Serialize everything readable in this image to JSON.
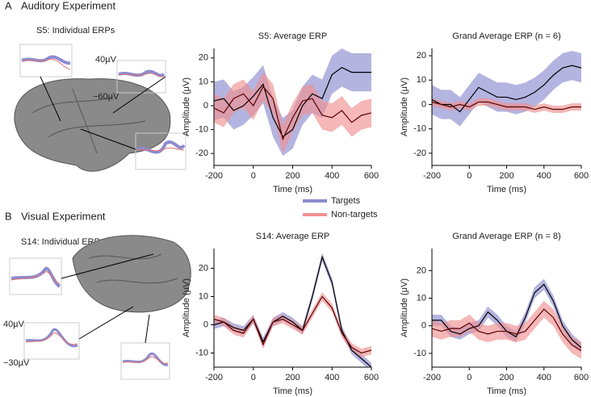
{
  "panels": [
    {
      "label": "A",
      "title": "Auditory Experiment",
      "subtitle": "S5: Individual ERPs",
      "scale_labels": [
        "40µV",
        "−60µV"
      ]
    },
    {
      "label": "B",
      "title": "Visual Experiment",
      "subtitle": "S14: Individual ERPs",
      "scale_labels": [
        "40µV",
        "−30µV"
      ]
    }
  ],
  "chart_data": [
    {
      "type": "line",
      "title": "S5: Average ERP",
      "xlabel": "Time (ms)",
      "ylabel": "Amplitude (μV)",
      "xlim": [
        -200,
        600
      ],
      "xticks": [
        -200,
        0,
        200,
        400,
        600
      ],
      "ylim": [
        -25,
        24
      ],
      "yticks": [
        -20,
        -10,
        0,
        10,
        20
      ],
      "x": [
        -200,
        -150,
        -100,
        -50,
        0,
        50,
        100,
        150,
        200,
        250,
        300,
        350,
        400,
        450,
        500,
        550,
        600
      ],
      "series": [
        {
          "name": "Targets",
          "color": "#8c8cd0",
          "line_color": "#000000",
          "values": [
            2,
            3,
            -2,
            0,
            4,
            9,
            -5,
            -13,
            -10,
            0,
            5,
            3,
            13,
            16,
            14,
            14,
            14
          ],
          "upper": [
            10,
            11,
            6,
            8,
            12,
            17,
            3,
            -5,
            -2,
            8,
            13,
            11,
            21,
            24,
            22,
            22,
            22
          ],
          "lower": [
            -6,
            -5,
            -10,
            -8,
            -4,
            1,
            -13,
            -21,
            -18,
            -8,
            -3,
            -5,
            5,
            8,
            6,
            6,
            6
          ]
        },
        {
          "name": "Non-targets",
          "color": "#f09090",
          "line_color": "#5a0000",
          "values": [
            -1,
            -3,
            3,
            5,
            0,
            8,
            3,
            -14,
            -5,
            2,
            3,
            -4,
            -5,
            -2,
            -7,
            -4,
            -3
          ],
          "upper": [
            5,
            3,
            9,
            11,
            6,
            14,
            9,
            -8,
            1,
            8,
            9,
            2,
            1,
            4,
            -1,
            2,
            3
          ],
          "lower": [
            -7,
            -9,
            -3,
            -1,
            -6,
            2,
            -3,
            -20,
            -11,
            -4,
            -3,
            -10,
            -11,
            -8,
            -13,
            -10,
            -9
          ]
        }
      ]
    },
    {
      "type": "line",
      "title": "Grand Average ERP (n = 6)",
      "xlabel": "Time (ms)",
      "ylabel": "Amplitude (μV)",
      "xlim": [
        -200,
        600
      ],
      "xticks": [
        -200,
        0,
        200,
        400,
        600
      ],
      "ylim": [
        -25,
        23
      ],
      "yticks": [
        -20,
        -10,
        0,
        10,
        20
      ],
      "x": [
        -200,
        -150,
        -100,
        -50,
        0,
        50,
        100,
        150,
        200,
        250,
        300,
        350,
        400,
        450,
        500,
        550,
        600
      ],
      "series": [
        {
          "color": "#8c8cd0",
          "line_color": "#000000",
          "values": [
            2,
            0,
            0,
            -3,
            2,
            7,
            5,
            3,
            3,
            2,
            3,
            5,
            8,
            12,
            15,
            16,
            15
          ],
          "upper": [
            8,
            6,
            6,
            3,
            8,
            13,
            11,
            9,
            9,
            8,
            9,
            11,
            14,
            18,
            21,
            22,
            21
          ],
          "lower": [
            -4,
            -6,
            -6,
            -9,
            -4,
            1,
            -1,
            -3,
            -3,
            -4,
            -3,
            -1,
            2,
            6,
            9,
            10,
            9
          ]
        },
        {
          "color": "#f09090",
          "line_color": "#5a0000",
          "values": [
            1,
            0,
            -1,
            0,
            -1,
            1,
            1,
            0,
            -1,
            -1,
            -1,
            -2,
            -1,
            -2,
            -2,
            -1,
            -1
          ],
          "upper": [
            2.5,
            1.5,
            0.5,
            1.5,
            0.5,
            2.5,
            2.5,
            1.5,
            0.5,
            0.5,
            0.5,
            -0.5,
            0.5,
            -0.5,
            -0.5,
            0.5,
            0.5
          ],
          "lower": [
            -0.5,
            -1.5,
            -2.5,
            -1.5,
            -2.5,
            -0.5,
            -0.5,
            -1.5,
            -2.5,
            -2.5,
            -2.5,
            -3.5,
            -2.5,
            -3.5,
            -3.5,
            -2.5,
            -2.5
          ]
        }
      ]
    },
    {
      "type": "line",
      "title": "S14: Average ERP",
      "xlabel": "Time (ms)",
      "ylabel": "Amplitude (μV)",
      "xlim": [
        -200,
        600
      ],
      "xticks": [
        -200,
        0,
        200,
        400,
        600
      ],
      "ylim": [
        -15,
        27
      ],
      "yticks": [
        -10,
        0,
        10,
        20
      ],
      "x": [
        -200,
        -150,
        -100,
        -50,
        0,
        50,
        100,
        150,
        200,
        250,
        300,
        350,
        400,
        450,
        500,
        550,
        600
      ],
      "series": [
        {
          "color": "#8c8cd0",
          "line_color": "#000000",
          "values": [
            0,
            1,
            -1,
            -2,
            2,
            -6,
            1,
            3,
            1,
            -2,
            10,
            24,
            15,
            -2,
            -9,
            -12,
            -15
          ],
          "upper": [
            1.5,
            2.5,
            0.5,
            -0.5,
            3.5,
            -4.5,
            2.5,
            4.5,
            2.5,
            -0.5,
            11.5,
            25.5,
            16.5,
            -0.5,
            -7.5,
            -10.5,
            -13.5
          ],
          "lower": [
            -1.5,
            -0.5,
            -2.5,
            -3.5,
            0.5,
            -7.5,
            -0.5,
            1.5,
            -0.5,
            -3.5,
            8.5,
            22.5,
            13.5,
            -3.5,
            -10.5,
            -13.5,
            -16.5
          ]
        },
        {
          "color": "#f09090",
          "line_color": "#5a0000",
          "values": [
            2,
            1,
            -2,
            -3,
            2,
            -7,
            1,
            2,
            0,
            -2,
            4,
            10,
            6,
            -3,
            -8,
            -10,
            -9
          ],
          "upper": [
            3.5,
            2.5,
            -0.5,
            -1.5,
            3.5,
            -5.5,
            2.5,
            3.5,
            1.5,
            -0.5,
            5.5,
            11.5,
            7.5,
            -1.5,
            -6.5,
            -8.5,
            -7.5
          ],
          "lower": [
            0.5,
            -0.5,
            -3.5,
            -4.5,
            0.5,
            -8.5,
            -0.5,
            0.5,
            -1.5,
            -3.5,
            2.5,
            8.5,
            4.5,
            -4.5,
            -9.5,
            -11.5,
            -10.5
          ]
        }
      ]
    },
    {
      "type": "line",
      "title": "Grand Average ERP (n = 8)",
      "xlabel": "Time (ms)",
      "ylabel": "Amplitude (μV)",
      "xlim": [
        -200,
        600
      ],
      "xticks": [
        -200,
        0,
        200,
        400,
        600
      ],
      "ylim": [
        -15,
        28
      ],
      "yticks": [
        -10,
        0,
        10,
        20
      ],
      "x": [
        -200,
        -150,
        -100,
        -50,
        0,
        50,
        100,
        150,
        200,
        250,
        300,
        350,
        400,
        450,
        500,
        550,
        600
      ],
      "series": [
        {
          "color": "#8c8cd0",
          "line_color": "#000000",
          "values": [
            2,
            2,
            -2,
            -3,
            -1,
            0,
            5,
            2,
            -2,
            -4,
            3,
            12,
            15,
            9,
            0,
            -5,
            -8
          ],
          "upper": [
            4,
            4,
            0,
            -1,
            1,
            2,
            7,
            4,
            0,
            -2,
            5,
            14,
            17,
            11,
            2,
            -3,
            -6
          ],
          "lower": [
            0,
            0,
            -4,
            -5,
            -3,
            -2,
            3,
            0,
            -4,
            -6,
            1,
            10,
            13,
            7,
            -2,
            -7,
            -10
          ]
        },
        {
          "color": "#f09090",
          "line_color": "#5a0000",
          "values": [
            -1,
            -2,
            -1,
            -1,
            1,
            -2,
            -3,
            -2,
            -2,
            -3,
            -2,
            2,
            6,
            3,
            -3,
            -7,
            -9
          ],
          "upper": [
            2,
            1,
            2,
            2,
            4,
            1,
            0,
            1,
            1,
            0,
            1,
            5,
            9,
            6,
            0,
            -4,
            -6
          ],
          "lower": [
            -4,
            -5,
            -4,
            -4,
            -2,
            -5,
            -6,
            -5,
            -5,
            -6,
            -5,
            -1,
            3,
            0,
            -6,
            -10,
            -12
          ]
        }
      ]
    }
  ]
}
